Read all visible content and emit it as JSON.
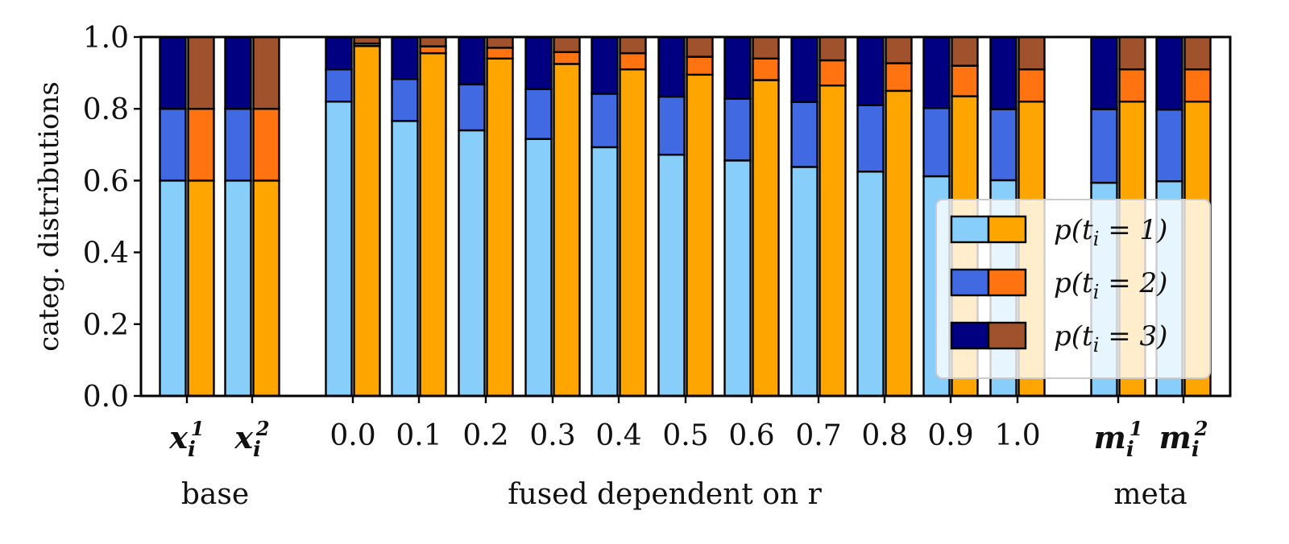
{
  "chart_data": {
    "type": "bar",
    "stacked": true,
    "ylabel": "categ. distributions",
    "ylim": [
      0,
      1
    ],
    "yticks": [
      "0.0",
      "0.2",
      "0.4",
      "0.6",
      "0.8",
      "1.0"
    ],
    "groups": [
      {
        "label_main": "x",
        "label_sub": "i",
        "label_sup": "1",
        "bold": true,
        "left": [
          0.6,
          0.2,
          0.2
        ],
        "right": [
          0.6,
          0.2,
          0.2
        ]
      },
      {
        "label_main": "x",
        "label_sub": "i",
        "label_sup": "2",
        "bold": true,
        "left": [
          0.6,
          0.2,
          0.2
        ],
        "right": [
          0.6,
          0.2,
          0.2
        ]
      },
      {
        "label_main": "0.0",
        "left": [
          0.82,
          0.09,
          0.09
        ],
        "right": [
          0.975,
          0.007,
          0.018
        ]
      },
      {
        "label_main": "0.1",
        "left": [
          0.766,
          0.117,
          0.117
        ],
        "right": [
          0.955,
          0.019,
          0.026
        ]
      },
      {
        "label_main": "0.2",
        "left": [
          0.74,
          0.128,
          0.132
        ],
        "right": [
          0.94,
          0.03,
          0.03
        ]
      },
      {
        "label_main": "0.3",
        "left": [
          0.716,
          0.139,
          0.145
        ],
        "right": [
          0.925,
          0.033,
          0.042
        ]
      },
      {
        "label_main": "0.4",
        "left": [
          0.693,
          0.149,
          0.158
        ],
        "right": [
          0.91,
          0.045,
          0.045
        ]
      },
      {
        "label_main": "0.5",
        "left": [
          0.672,
          0.162,
          0.166
        ],
        "right": [
          0.895,
          0.05,
          0.055
        ]
      },
      {
        "label_main": "0.6",
        "left": [
          0.656,
          0.172,
          0.172
        ],
        "right": [
          0.88,
          0.06,
          0.06
        ]
      },
      {
        "label_main": "0.7",
        "left": [
          0.638,
          0.181,
          0.181
        ],
        "right": [
          0.865,
          0.07,
          0.065
        ]
      },
      {
        "label_main": "0.8",
        "left": [
          0.625,
          0.185,
          0.19
        ],
        "right": [
          0.85,
          0.077,
          0.073
        ]
      },
      {
        "label_main": "0.9",
        "left": [
          0.612,
          0.19,
          0.198
        ],
        "right": [
          0.835,
          0.085,
          0.08
        ]
      },
      {
        "label_main": "1.0",
        "left": [
          0.601,
          0.198,
          0.201
        ],
        "right": [
          0.82,
          0.09,
          0.09
        ]
      },
      {
        "label_main": "m",
        "label_sub": "i",
        "label_sup": "1",
        "bold": true,
        "left": [
          0.594,
          0.205,
          0.201
        ],
        "right": [
          0.82,
          0.09,
          0.09
        ]
      },
      {
        "label_main": "m",
        "label_sub": "i",
        "label_sup": "2",
        "bold": true,
        "left": [
          0.598,
          0.2,
          0.202
        ],
        "right": [
          0.82,
          0.09,
          0.09
        ]
      }
    ],
    "left_colors": [
      "#87cefa",
      "#4169e1",
      "#000080"
    ],
    "right_colors": [
      "#ffa500",
      "#ff7410",
      "#a0522d"
    ],
    "section_labels": [
      "base",
      "fused dependent on r",
      "meta"
    ],
    "legend": {
      "placement": "lower-right",
      "entries": [
        "p(t_i = 1)",
        "p(t_i = 2)",
        "p(t_i = 3)"
      ]
    }
  }
}
